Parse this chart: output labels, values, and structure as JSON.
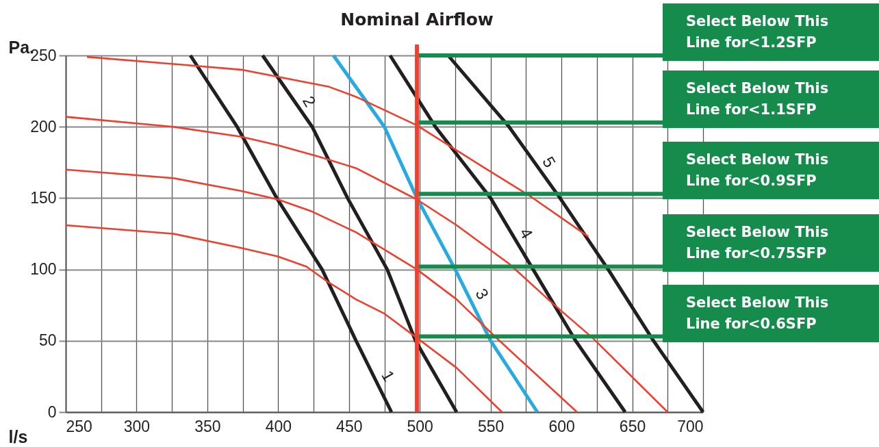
{
  "chart_data": {
    "type": "line",
    "xlabel": "l/s",
    "ylabel": "Pa.",
    "xlim": [
      250,
      700
    ],
    "ylim": [
      0,
      250
    ],
    "xticks": [
      250,
      {
        "value": 275,
        "label": null
      },
      300,
      {
        "value": 325,
        "label": null
      },
      350,
      {
        "value": 375,
        "label": null
      },
      400,
      {
        "value": 425,
        "label": null
      },
      450,
      {
        "value": 475,
        "label": null
      },
      500,
      {
        "value": 525,
        "label": null
      },
      550,
      {
        "value": 575,
        "label": null
      },
      600,
      {
        "value": 625,
        "label": null
      },
      650,
      {
        "value": 675,
        "label": null
      },
      700
    ],
    "yticks": [
      0,
      50,
      100,
      150,
      200,
      250
    ],
    "grid": true,
    "line_style": "solid",
    "series": [
      {
        "name": "1",
        "color": "#231f20",
        "x": [
          338,
          371,
          399,
          431,
          455,
          480
        ],
        "values": [
          250,
          200,
          150,
          100,
          50,
          0
        ]
      },
      {
        "name": "2",
        "color": "#231f20",
        "x": [
          389,
          424,
          449,
          477,
          497,
          526
        ],
        "values": [
          250,
          200,
          150,
          100,
          50,
          0
        ]
      },
      {
        "name": "3",
        "color": "#27aae1",
        "x": [
          439,
          475,
          498,
          525,
          550,
          583
        ],
        "values": [
          250,
          200,
          150,
          100,
          50,
          0
        ]
      },
      {
        "name": "4",
        "color": "#231f20",
        "x": [
          479,
          511,
          550,
          580,
          610,
          645
        ],
        "values": [
          250,
          200,
          150,
          100,
          50,
          0
        ]
      },
      {
        "name": "5",
        "color": "#231f20",
        "x": [
          520,
          563,
          599,
          633,
          665,
          700
        ],
        "values": [
          250,
          200,
          150,
          100,
          50,
          0
        ]
      },
      {
        "color": "#ee3f2e",
        "x": [
          265,
          326,
          374,
          400,
          436,
          455,
          498,
          546,
          577,
          619
        ],
        "values": [
          249,
          244,
          240,
          235,
          228,
          221,
          201,
          171,
          152,
          123
        ]
      },
      {
        "color": "#ee3f2e",
        "x": [
          250,
          326,
          374,
          400,
          429,
          455,
          498,
          526,
          563,
          594,
          622,
          675
        ],
        "values": [
          207,
          200,
          193,
          187,
          179,
          171,
          149,
          131,
          104,
          76,
          52,
          0
        ]
      },
      {
        "color": "#ee3f2e",
        "x": [
          250,
          326,
          374,
          400,
          423,
          455,
          498,
          526,
          553,
          611
        ],
        "values": [
          170,
          164,
          155,
          149,
          141,
          126,
          100,
          79,
          53,
          0
        ]
      },
      {
        "color": "#ee3f2e",
        "x": [
          250,
          326,
          374,
          400,
          420,
          434,
          455,
          475,
          498,
          526,
          558
        ],
        "values": [
          131,
          125,
          115,
          109,
          102,
          92,
          79,
          69,
          52,
          31,
          0
        ]
      }
    ],
    "ref_lines": [
      {
        "axis": "x",
        "value": 498,
        "label": "Nominal Airflow",
        "color": "#ee4130"
      },
      {
        "axis": "y",
        "value": 250,
        "label": "Select Below This Line for<1.2SFP",
        "color": "#158c4c"
      },
      {
        "axis": "y",
        "value": 203,
        "label": "Select Below This Line for<1.1SFP",
        "color": "#158c4c"
      },
      {
        "axis": "y",
        "value": 153,
        "label": "Select Below This Line for<0.9SFP",
        "color": "#158c4c"
      },
      {
        "axis": "y",
        "value": 102,
        "label": "Select Below This Line for<0.75SFP",
        "color": "#158c4c"
      },
      {
        "axis": "y",
        "value": 53,
        "label": "Select Below This Line for<0.6SFP",
        "color": "#158c4c"
      }
    ]
  }
}
